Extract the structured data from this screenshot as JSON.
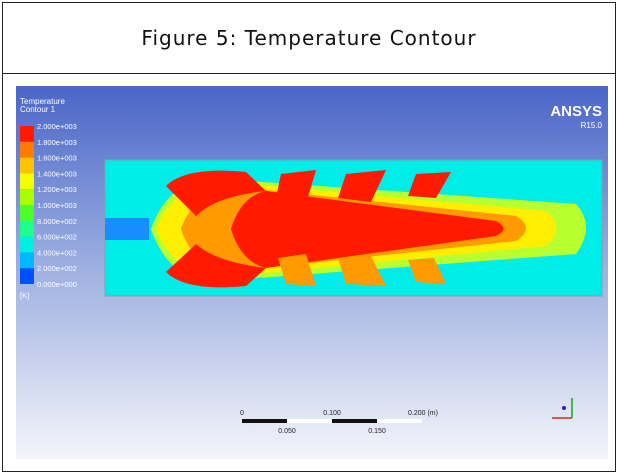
{
  "header": {
    "title": "Figure 5: Temperature Contour"
  },
  "figure": {
    "legend": {
      "title": "Temperature",
      "subtitle": "Contour 1",
      "labels": [
        "2.000e+003",
        "1.800e+003",
        "1.600e+003",
        "1.400e+003",
        "1.200e+003",
        "1.000e+003",
        "8.000e+002",
        "6.000e+002",
        "4.000e+002",
        "2.000e+002",
        "0.000e+000"
      ],
      "colors": [
        "#ff1a00",
        "#ff7a00",
        "#ffc400",
        "#f4ff00",
        "#a8ff00",
        "#4cff2a",
        "#1cff8a",
        "#00f0e0",
        "#00b8ff",
        "#0050ff"
      ],
      "unit": "[K]"
    },
    "brand": "ANSYS",
    "version": "R15.0",
    "scale": {
      "top": [
        "0",
        "0.100",
        "0.200 (m)"
      ],
      "bottom": [
        "0.050",
        "0.150"
      ]
    }
  }
}
